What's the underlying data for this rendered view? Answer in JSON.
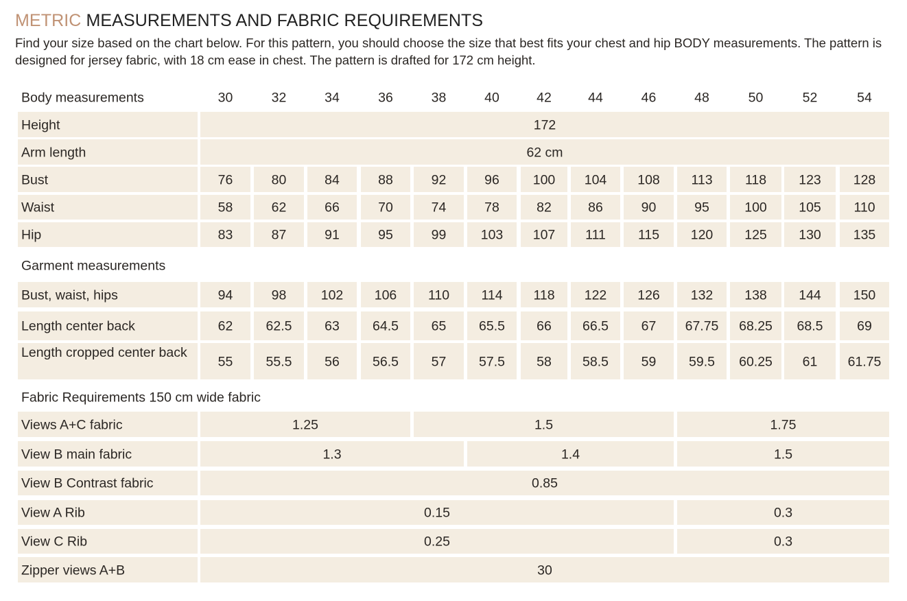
{
  "header": {
    "title_accent": "METRIC",
    "title_rest": " MEASUREMENTS AND FABRIC REQUIREMENTS",
    "intro": "Find your size based on the chart below. For this pattern, you should choose the size that best fits your chest and hip BODY measurements. The pattern is designed for jersey fabric, with 18 cm ease in chest. The pattern is drafted for 172 cm height."
  },
  "colors": {
    "accent": "#c09274",
    "cell_bg": "#f4ede1",
    "text": "#2b2724"
  },
  "chart_data": {
    "type": "table",
    "header_label": "Body measurements",
    "sizes": [
      "30",
      "32",
      "34",
      "36",
      "38",
      "40",
      "42",
      "44",
      "46",
      "48",
      "50",
      "52",
      "54"
    ],
    "rows": [
      {
        "label": "Height",
        "spans": [
          {
            "from": 0,
            "to": 12,
            "value": "172"
          }
        ]
      },
      {
        "label": "Arm length",
        "spans": [
          {
            "from": 0,
            "to": 12,
            "value": "62 cm"
          }
        ]
      },
      {
        "label": "Bust",
        "values": [
          "76",
          "80",
          "84",
          "88",
          "92",
          "96",
          "100",
          "104",
          "108",
          "113",
          "118",
          "123",
          "128"
        ]
      },
      {
        "label": "Waist",
        "values": [
          "58",
          "62",
          "66",
          "70",
          "74",
          "78",
          "82",
          "86",
          "90",
          "95",
          "100",
          "105",
          "110"
        ]
      },
      {
        "label": "Hip",
        "values": [
          "83",
          "87",
          "91",
          "95",
          "99",
          "103",
          "107",
          "111",
          "115",
          "120",
          "125",
          "130",
          "135"
        ]
      },
      {
        "section": "Garment measurements"
      },
      {
        "label": "Bust, waist, hips",
        "values": [
          "94",
          "98",
          "102",
          "106",
          "110",
          "114",
          "118",
          "122",
          "126",
          "132",
          "138",
          "144",
          "150"
        ]
      },
      {
        "label": "Length center back",
        "values": [
          "62",
          "62.5",
          "63",
          "64.5",
          "65",
          "65.5",
          "66",
          "66.5",
          "67",
          "67.75",
          "68.25",
          "68.5",
          "69"
        ]
      },
      {
        "label": "Length cropped center back",
        "tall": true,
        "values": [
          "55",
          "55.5",
          "56",
          "56.5",
          "57",
          "57.5",
          "58",
          "58.5",
          "59",
          "59.5",
          "60.25",
          "61",
          "61.75"
        ]
      },
      {
        "section": "Fabric Requirements 150 cm wide fabric"
      },
      {
        "label": "Views A+C fabric",
        "spans": [
          {
            "from": 0,
            "to": 3,
            "value": "1.25"
          },
          {
            "from": 4,
            "to": 8,
            "value": "1.5"
          },
          {
            "from": 9,
            "to": 12,
            "value": "1.75"
          }
        ]
      },
      {
        "label": "View B main fabric",
        "spans": [
          {
            "from": 0,
            "to": 4,
            "value": "1.3"
          },
          {
            "from": 5,
            "to": 8,
            "value": "1.4"
          },
          {
            "from": 9,
            "to": 12,
            "value": "1.5"
          }
        ]
      },
      {
        "label": "View B Contrast fabric",
        "spans": [
          {
            "from": 0,
            "to": 12,
            "value": "0.85"
          }
        ]
      },
      {
        "label": "View A  Rib",
        "spans": [
          {
            "from": 0,
            "to": 8,
            "value": "0.15"
          },
          {
            "from": 9,
            "to": 12,
            "value": "0.3"
          }
        ]
      },
      {
        "label": "View C Rib",
        "spans": [
          {
            "from": 0,
            "to": 8,
            "value": "0.25"
          },
          {
            "from": 9,
            "to": 12,
            "value": "0.3"
          }
        ]
      },
      {
        "label": "Zipper views A+B",
        "spans": [
          {
            "from": 0,
            "to": 12,
            "value": "30"
          }
        ]
      }
    ]
  }
}
